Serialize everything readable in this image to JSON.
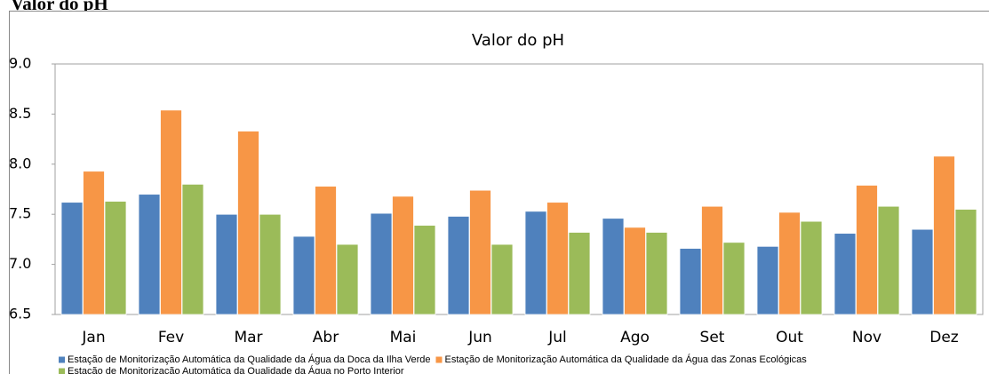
{
  "page_title": "Valor do pH",
  "chart_data": {
    "type": "bar",
    "title": "Valor do pH",
    "categories": [
      "Jan",
      "Fev",
      "Mar",
      "Abr",
      "Mai",
      "Jun",
      "Jul",
      "Ago",
      "Set",
      "Out",
      "Nov",
      "Dez"
    ],
    "series": [
      {
        "name": "Estação de Monitorização Automática da Qualidade da Água da Doca da Ilha Verde",
        "color": "#4f81bd",
        "values": [
          7.62,
          7.7,
          7.5,
          7.28,
          7.51,
          7.48,
          7.53,
          7.46,
          7.16,
          7.18,
          7.31,
          7.35
        ]
      },
      {
        "name": "Estação de Monitorização Automática da Qualidade da Água das Zonas Ecológicas",
        "color": "#f79646",
        "values": [
          7.93,
          8.54,
          8.33,
          7.78,
          7.68,
          7.74,
          7.62,
          7.37,
          7.58,
          7.52,
          7.79,
          8.08
        ]
      },
      {
        "name": "Estação de Monitorização Automática da Qualidade da Água no Porto Interior",
        "color": "#9bbb59",
        "values": [
          7.63,
          7.8,
          7.5,
          7.2,
          7.39,
          7.2,
          7.32,
          7.32,
          7.22,
          7.43,
          7.58,
          7.55
        ]
      }
    ],
    "ylim": [
      6.5,
      9.0
    ],
    "yticks": [
      {
        "value": 6.5,
        "label": "6.5"
      },
      {
        "value": 7,
        "label": "7.0"
      },
      {
        "value": 7.5,
        "label": "7.5"
      },
      {
        "value": 8,
        "label": "8.0"
      },
      {
        "value": 8.5,
        "label": "8.5"
      },
      {
        "value": 9,
        "label": "9.0"
      }
    ],
    "grid": false,
    "legend": "bottom"
  }
}
